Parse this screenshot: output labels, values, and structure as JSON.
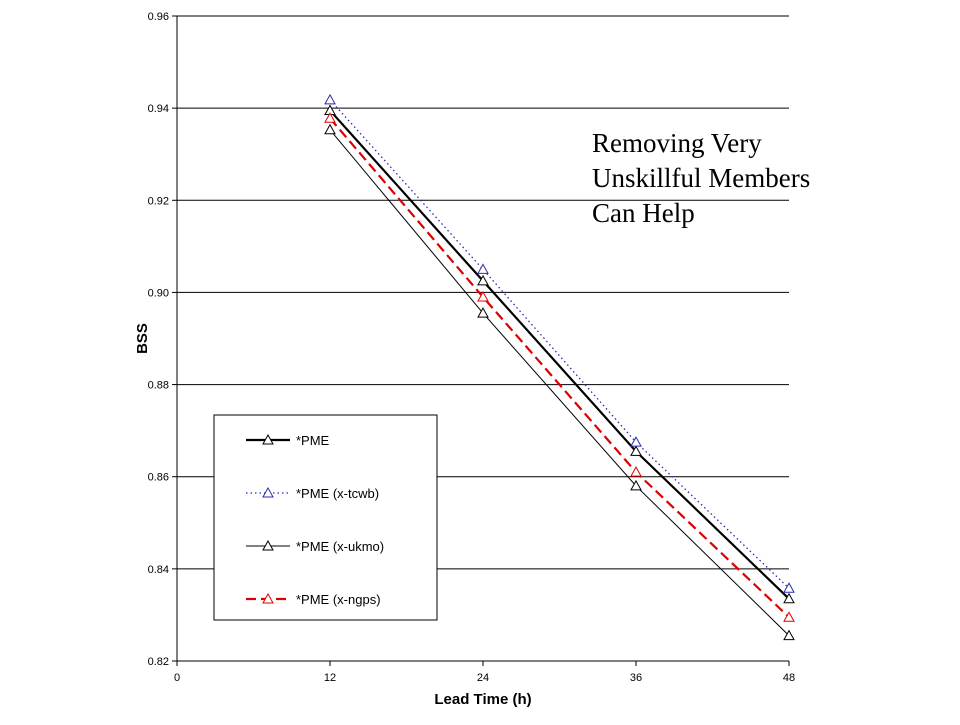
{
  "chart_data": {
    "type": "line",
    "title": "",
    "xlabel": "Lead Time (h)",
    "ylabel": "BSS",
    "xlim": [
      0,
      48
    ],
    "ylim": [
      0.82,
      0.96
    ],
    "x_ticks": [
      "0",
      "12",
      "24",
      "36",
      "48"
    ],
    "y_ticks": [
      "0.82",
      "0.84",
      "0.86",
      "0.88",
      "0.90",
      "0.92",
      "0.94",
      "0.96"
    ],
    "grid": "horizontal",
    "legend_position": "bottom-left",
    "x": [
      12,
      24,
      36,
      48
    ],
    "series": [
      {
        "name": "*PME",
        "values": [
          0.9395,
          0.9025,
          0.8655,
          0.8335
        ],
        "color": "#000000",
        "line_style": "solid-bold",
        "marker": "triangle",
        "marker_color": "#000000"
      },
      {
        "name": "*PME (x-tcwb)",
        "values": [
          0.9418,
          0.905,
          0.8675,
          0.8358
        ],
        "color": "#2b2bb0",
        "line_style": "dotted",
        "marker": "triangle",
        "marker_color": "#2b2bb0"
      },
      {
        "name": "*PME (x-ukmo)",
        "values": [
          0.9353,
          0.8955,
          0.858,
          0.8255
        ],
        "color": "#000000",
        "line_style": "solid-thin",
        "marker": "triangle",
        "marker_color": "#000000"
      },
      {
        "name": "*PME (x-ngps)",
        "values": [
          0.9378,
          0.899,
          0.861,
          0.8295
        ],
        "color": "#dd0000",
        "line_style": "dashed",
        "marker": "triangle",
        "marker_color": "#dd0000"
      }
    ]
  },
  "annotation": {
    "lines": [
      "Removing  Very",
      "Unskillful  Members",
      "Can Help"
    ]
  }
}
